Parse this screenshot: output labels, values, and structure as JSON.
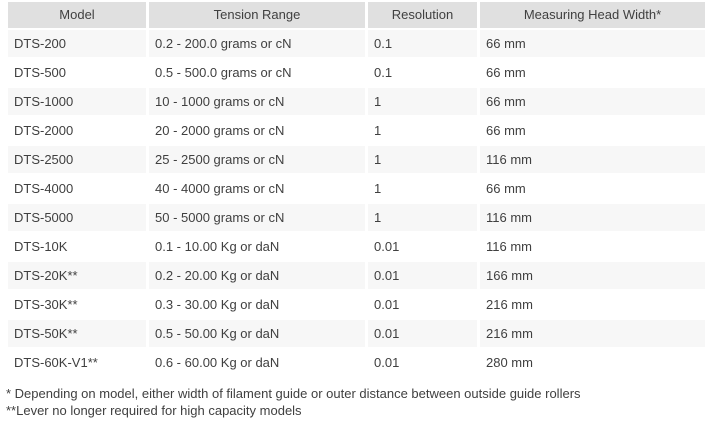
{
  "colors": {
    "header_bg": "#e0e0e0",
    "stripe_bg": "#f7f7f7",
    "text": "#404040"
  },
  "table": {
    "columns": [
      "Model",
      "Tension Range",
      "Resolution",
      "Measuring Head Width*"
    ],
    "rows": [
      {
        "model": "DTS-200",
        "tension_range": "0.2 - 200.0 grams or cN",
        "resolution": "0.1",
        "head_width": "66 mm"
      },
      {
        "model": "DTS-500",
        "tension_range": "0.5 - 500.0 grams or cN",
        "resolution": "0.1",
        "head_width": "66 mm"
      },
      {
        "model": "DTS-1000",
        "tension_range": "10 - 1000 grams or cN",
        "resolution": "1",
        "head_width": "66 mm"
      },
      {
        "model": "DTS-2000",
        "tension_range": "20 - 2000 grams or cN",
        "resolution": "1",
        "head_width": "66 mm"
      },
      {
        "model": "DTS-2500",
        "tension_range": "25 - 2500 grams or cN",
        "resolution": "1",
        "head_width": "116 mm"
      },
      {
        "model": "DTS-4000",
        "tension_range": "40 - 4000 grams or cN",
        "resolution": "1",
        "head_width": "66 mm"
      },
      {
        "model": "DTS-5000",
        "tension_range": "50 - 5000 grams or cN",
        "resolution": "1",
        "head_width": "116 mm"
      },
      {
        "model": "DTS-10K",
        "tension_range": "0.1 - 10.00 Kg or daN",
        "resolution": "0.01",
        "head_width": "116 mm"
      },
      {
        "model": "DTS-20K**",
        "tension_range": "0.2 - 20.00 Kg or daN",
        "resolution": "0.01",
        "head_width": "166 mm"
      },
      {
        "model": "DTS-30K**",
        "tension_range": "0.3 - 30.00 Kg or daN",
        "resolution": "0.01",
        "head_width": "216 mm"
      },
      {
        "model": "DTS-50K**",
        "tension_range": "0.5 - 50.00 Kg or daN",
        "resolution": "0.01",
        "head_width": "216 mm"
      },
      {
        "model": "DTS-60K-V1**",
        "tension_range": "0.6 - 60.00 Kg or daN",
        "resolution": "0.01",
        "head_width": "280 mm"
      }
    ]
  },
  "footnotes": [
    "* Depending on model, either width of filament guide or outer distance between outside guide rollers",
    "**Lever no longer required for high capacity models"
  ]
}
